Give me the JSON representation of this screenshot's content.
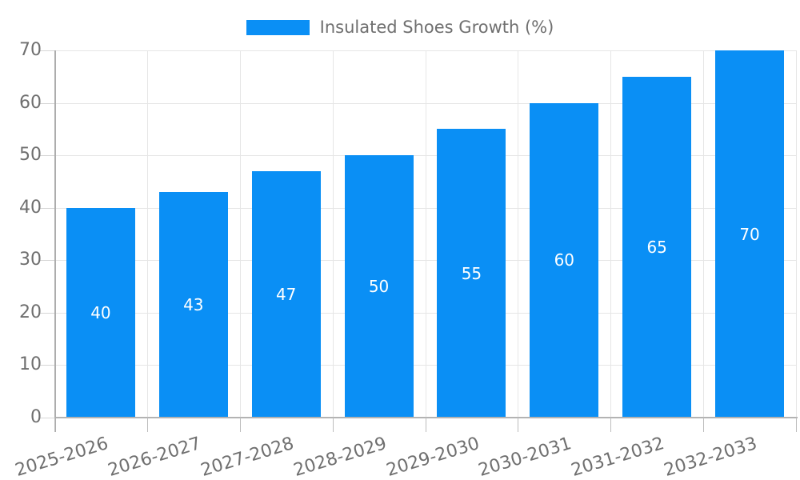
{
  "legend": {
    "label": "Insulated Shoes Growth (%)"
  },
  "chart_data": {
    "type": "bar",
    "title": "",
    "xlabel": "",
    "ylabel": "",
    "categories": [
      "2025-2026",
      "2026-2027",
      "2027-2028",
      "2028-2029",
      "2029-2030",
      "2030-2031",
      "2031-2032",
      "2032-2033"
    ],
    "series": [
      {
        "name": "Insulated Shoes Growth (%)",
        "values": [
          40,
          43,
          47,
          50,
          55,
          60,
          65,
          70
        ]
      }
    ],
    "value_labels": [
      40,
      43,
      47,
      50,
      55,
      60,
      65,
      70
    ],
    "ylim": [
      0,
      70
    ],
    "yticks": [
      0,
      10,
      20,
      30,
      40,
      50,
      60,
      70
    ],
    "legend_position": "top",
    "grid": true,
    "bar_color": "#0a8ff5",
    "value_label_color": "#ffffff",
    "axis_text_color": "#6f6f6f",
    "gridline_color": "#e6e6e6",
    "baseline_color": "#b3b3b3",
    "background_color": "#ffffff"
  }
}
